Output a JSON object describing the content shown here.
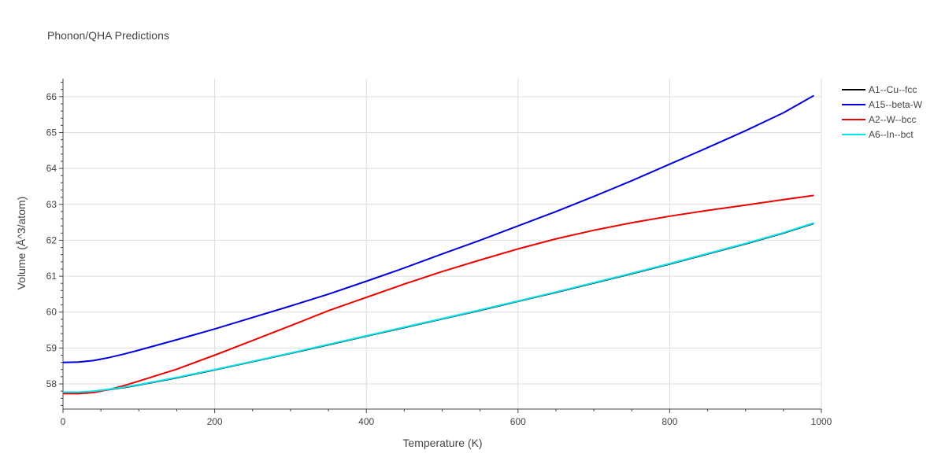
{
  "chart_data": {
    "type": "line",
    "title": "Phonon/QHA Predictions",
    "xlabel": "Temperature (K)",
    "ylabel": "Volume (Å^3/atom)",
    "xlim": [
      0,
      1000
    ],
    "ylim": [
      57.3,
      66.5
    ],
    "xticks": [
      0,
      200,
      400,
      600,
      800,
      1000
    ],
    "yticks": [
      58,
      59,
      60,
      61,
      62,
      63,
      64,
      65,
      66
    ],
    "grid": true,
    "legend_position": "top-right",
    "series": [
      {
        "name": "A1--Cu--fcc",
        "color": "#000000",
        "x": [
          0,
          20,
          40,
          60,
          80,
          100,
          150,
          200,
          250,
          300,
          350,
          400,
          450,
          500,
          550,
          600,
          650,
          700,
          750,
          800,
          850,
          900,
          950,
          990
        ],
        "y": [
          57.76,
          57.76,
          57.79,
          57.84,
          57.9,
          57.97,
          58.17,
          58.39,
          58.62,
          58.85,
          59.09,
          59.33,
          59.57,
          59.81,
          60.05,
          60.3,
          60.55,
          60.81,
          61.07,
          61.34,
          61.62,
          61.9,
          62.2,
          62.47
        ]
      },
      {
        "name": "A15--beta-W",
        "color": "#0000dd",
        "x": [
          0,
          20,
          40,
          60,
          80,
          100,
          150,
          200,
          250,
          300,
          350,
          400,
          450,
          500,
          550,
          600,
          650,
          700,
          750,
          800,
          850,
          900,
          950,
          990
        ],
        "y": [
          58.6,
          58.61,
          58.65,
          58.73,
          58.83,
          58.94,
          59.23,
          59.53,
          59.85,
          60.17,
          60.5,
          60.86,
          61.23,
          61.62,
          62.0,
          62.4,
          62.8,
          63.22,
          63.66,
          64.12,
          64.58,
          65.05,
          65.55,
          66.03
        ]
      },
      {
        "name": "A2--W--bcc",
        "color": "#ee0000",
        "x": [
          0,
          20,
          40,
          60,
          80,
          100,
          150,
          200,
          250,
          300,
          350,
          400,
          450,
          500,
          550,
          600,
          650,
          700,
          750,
          800,
          850,
          900,
          950,
          990
        ],
        "y": [
          57.73,
          57.73,
          57.76,
          57.84,
          57.95,
          58.08,
          58.41,
          58.8,
          59.21,
          59.62,
          60.04,
          60.41,
          60.78,
          61.13,
          61.45,
          61.76,
          62.04,
          62.28,
          62.49,
          62.67,
          62.83,
          62.98,
          63.13,
          63.25
        ]
      },
      {
        "name": "A6--In--bct",
        "color": "#00e5ee",
        "x": [
          0,
          20,
          40,
          60,
          80,
          100,
          150,
          200,
          250,
          300,
          350,
          400,
          450,
          500,
          550,
          600,
          650,
          700,
          750,
          800,
          850,
          900,
          950,
          990
        ],
        "y": [
          57.77,
          57.77,
          57.8,
          57.85,
          57.91,
          57.98,
          58.18,
          58.4,
          58.63,
          58.86,
          59.1,
          59.34,
          59.58,
          59.82,
          60.06,
          60.31,
          60.56,
          60.82,
          61.08,
          61.35,
          61.63,
          61.91,
          62.21,
          62.48
        ]
      }
    ]
  }
}
